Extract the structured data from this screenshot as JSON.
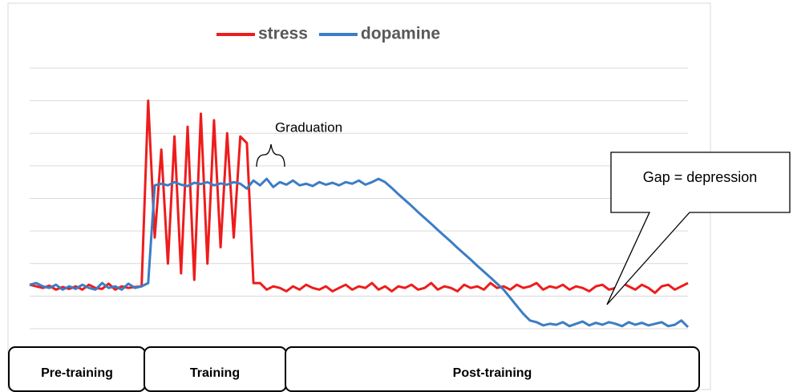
{
  "chart_data": {
    "type": "line",
    "legend": "top",
    "grid": true,
    "xlim": [
      0,
      100
    ],
    "ylim": [
      0,
      8
    ],
    "yticks": [
      0,
      1,
      2,
      3,
      4,
      5,
      6,
      7,
      8
    ],
    "x": [
      0,
      1,
      2,
      3,
      4,
      5,
      6,
      7,
      8,
      9,
      10,
      11,
      12,
      13,
      14,
      15,
      16,
      17,
      18,
      19,
      20,
      21,
      22,
      23,
      24,
      25,
      26,
      27,
      28,
      29,
      30,
      31,
      32,
      33,
      34,
      35,
      36,
      37,
      38,
      39,
      40,
      41,
      42,
      43,
      44,
      45,
      46,
      47,
      48,
      49,
      50,
      51,
      52,
      53,
      54,
      55,
      56,
      57,
      58,
      59,
      60,
      61,
      62,
      63,
      64,
      65,
      66,
      67,
      68,
      69,
      70,
      71,
      72,
      73,
      74,
      75,
      76,
      77,
      78,
      79,
      80,
      81,
      82,
      83,
      84,
      85,
      86,
      87,
      88,
      89,
      90,
      91,
      92,
      93,
      94,
      95,
      96,
      97,
      98,
      99,
      100
    ],
    "series": [
      {
        "name": "stress",
        "color": "#ee1c1c",
        "values": [
          1.35,
          1.3,
          1.25,
          1.32,
          1.2,
          1.28,
          1.22,
          1.3,
          1.2,
          1.35,
          1.25,
          1.22,
          1.38,
          1.2,
          1.3,
          1.25,
          1.28,
          1.3,
          7.0,
          2.8,
          5.5,
          2.0,
          5.9,
          1.7,
          6.2,
          1.5,
          6.6,
          2.0,
          6.4,
          2.5,
          6.0,
          2.8,
          5.9,
          5.7,
          1.4,
          1.4,
          1.2,
          1.3,
          1.25,
          1.15,
          1.3,
          1.2,
          1.35,
          1.25,
          1.2,
          1.3,
          1.15,
          1.25,
          1.35,
          1.2,
          1.3,
          1.25,
          1.4,
          1.2,
          1.3,
          1.15,
          1.3,
          1.25,
          1.35,
          1.2,
          1.25,
          1.4,
          1.2,
          1.3,
          1.25,
          1.15,
          1.35,
          1.25,
          1.3,
          1.2,
          1.4,
          1.25,
          1.3,
          1.2,
          1.35,
          1.25,
          1.3,
          1.4,
          1.2,
          1.3,
          1.25,
          1.35,
          1.2,
          1.3,
          1.25,
          1.15,
          1.3,
          1.35,
          1.2,
          1.25,
          1.4,
          1.3,
          1.2,
          1.35,
          1.25,
          1.1,
          1.3,
          1.35,
          1.2,
          1.3,
          1.4
        ]
      },
      {
        "name": "dopamine",
        "color": "#3c7dc4",
        "values": [
          1.35,
          1.4,
          1.3,
          1.25,
          1.35,
          1.2,
          1.3,
          1.22,
          1.35,
          1.25,
          1.2,
          1.4,
          1.25,
          1.3,
          1.2,
          1.38,
          1.25,
          1.3,
          1.4,
          4.4,
          4.45,
          4.4,
          4.5,
          4.42,
          4.38,
          4.48,
          4.44,
          4.5,
          4.4,
          4.46,
          4.42,
          4.5,
          4.45,
          4.3,
          4.55,
          4.4,
          4.6,
          4.35,
          4.5,
          4.42,
          4.55,
          4.4,
          4.45,
          4.38,
          4.5,
          4.42,
          4.48,
          4.4,
          4.5,
          4.45,
          4.55,
          4.42,
          4.5,
          4.6,
          4.5,
          4.32,
          4.13,
          3.95,
          3.77,
          3.58,
          3.4,
          3.22,
          3.03,
          2.85,
          2.67,
          2.48,
          2.3,
          2.12,
          1.93,
          1.75,
          1.57,
          1.38,
          1.2,
          0.95,
          0.7,
          0.45,
          0.25,
          0.2,
          0.1,
          0.15,
          0.12,
          0.2,
          0.08,
          0.15,
          0.22,
          0.1,
          0.18,
          0.12,
          0.2,
          0.15,
          0.08,
          0.2,
          0.12,
          0.18,
          0.1,
          0.15,
          0.2,
          0.08,
          0.12,
          0.25,
          0.05
        ]
      }
    ],
    "annotations": {
      "graduation": "Graduation",
      "callout": "Gap = depression"
    },
    "phases": [
      "Pre-training",
      "Training",
      "Post-training"
    ]
  }
}
